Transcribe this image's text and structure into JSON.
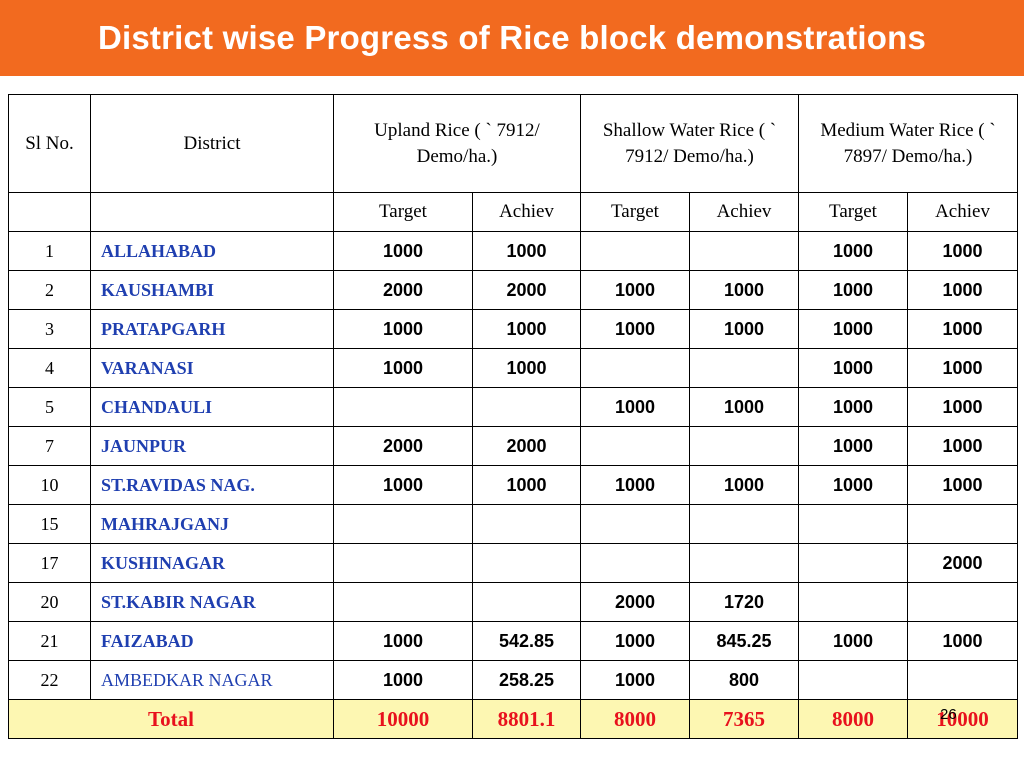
{
  "title": "District wise Progress of Rice block demonstrations",
  "headers": {
    "sl": "Sl No.",
    "district": "District",
    "upland": "Upland Rice ( ` 7912/ Demo/ha.)",
    "shallow": "Shallow Water Rice ( ` 7912/ Demo/ha.)",
    "medium": "Medium Water Rice ( ` 7897/ Demo/ha.)",
    "target": "Target",
    "achiev": "Achiev"
  },
  "rows": [
    {
      "sl": "1",
      "district": "ALLAHABAD",
      "up_t": "1000",
      "up_a": "1000",
      "sw_t": "",
      "sw_a": "",
      "mw_t": "1000",
      "mw_a": "1000"
    },
    {
      "sl": "2",
      "district": "KAUSHAMBI",
      "up_t": "2000",
      "up_a": "2000",
      "sw_t": "1000",
      "sw_a": "1000",
      "mw_t": "1000",
      "mw_a": "1000"
    },
    {
      "sl": "3",
      "district": "PRATAPGARH",
      "up_t": "1000",
      "up_a": "1000",
      "sw_t": "1000",
      "sw_a": "1000",
      "mw_t": "1000",
      "mw_a": "1000"
    },
    {
      "sl": "4",
      "district": "VARANASI",
      "up_t": "1000",
      "up_a": "1000",
      "sw_t": "",
      "sw_a": "",
      "mw_t": "1000",
      "mw_a": "1000"
    },
    {
      "sl": "5",
      "district": "CHANDAULI",
      "up_t": "",
      "up_a": "",
      "sw_t": "1000",
      "sw_a": "1000",
      "mw_t": "1000",
      "mw_a": "1000"
    },
    {
      "sl": "7",
      "district": "JAUNPUR",
      "up_t": "2000",
      "up_a": "2000",
      "sw_t": "",
      "sw_a": "",
      "mw_t": "1000",
      "mw_a": "1000"
    },
    {
      "sl": "10",
      "district": "ST.RAVIDAS NAG.",
      "up_t": "1000",
      "up_a": "1000",
      "sw_t": "1000",
      "sw_a": "1000",
      "mw_t": "1000",
      "mw_a": "1000"
    },
    {
      "sl": "15",
      "district": "MAHRAJGANJ",
      "up_t": "",
      "up_a": "",
      "sw_t": "",
      "sw_a": "",
      "mw_t": "",
      "mw_a": ""
    },
    {
      "sl": "17",
      "district": "KUSHINAGAR",
      "up_t": "",
      "up_a": "",
      "sw_t": "",
      "sw_a": "",
      "mw_t": "",
      "mw_a": "2000"
    },
    {
      "sl": "20",
      "district": "ST.KABIR NAGAR",
      "up_t": "",
      "up_a": "",
      "sw_t": "2000",
      "sw_a": "1720",
      "mw_t": "",
      "mw_a": ""
    },
    {
      "sl": "21",
      "district": "FAIZABAD",
      "up_t": "1000",
      "up_a": "542.85",
      "sw_t": "1000",
      "sw_a": "845.25",
      "mw_t": "1000",
      "mw_a": "1000"
    },
    {
      "sl": "22",
      "district": "AMBEDKAR NAGAR",
      "up_t": "1000",
      "up_a": "258.25",
      "sw_t": "1000",
      "sw_a": "800",
      "mw_t": "",
      "mw_a": ""
    }
  ],
  "total": {
    "label": "Total",
    "up_t": "10000",
    "up_a": "8801.1",
    "sw_t": "8000",
    "sw_a": "7365",
    "mw_t": "8000",
    "mw_a": "10000"
  },
  "page_number": "26",
  "colors": {
    "title_bar": "#f26a1f",
    "district_text": "#1f3fb0",
    "total_text": "#e8111d",
    "total_bg": "#fdf7b2"
  }
}
